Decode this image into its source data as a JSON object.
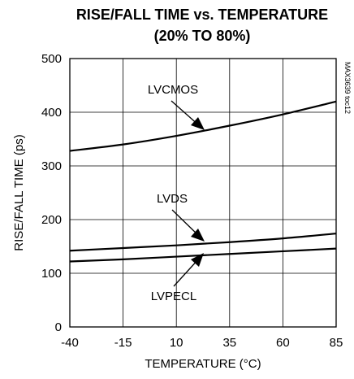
{
  "chart_data": {
    "type": "line",
    "title": "RISE/FALL TIME vs. TEMPERATURE",
    "subtitle": "(20% TO 80%)",
    "xlabel": "TEMPERATURE (°C)",
    "ylabel": "RISE/FALL TIME (ps)",
    "xlim": [
      -40,
      85
    ],
    "ylim": [
      0,
      500
    ],
    "xticks": [
      "-40",
      "-15",
      "10",
      "35",
      "60",
      "85"
    ],
    "yticks": [
      "0",
      "100",
      "200",
      "300",
      "400",
      "500"
    ],
    "grid": true,
    "watermark": "MAX3639 toc12",
    "series": [
      {
        "name": "LVCMOS",
        "x": [
          -40,
          -15,
          10,
          35,
          60,
          85
        ],
        "y": [
          328,
          340,
          356,
          375,
          396,
          420
        ]
      },
      {
        "name": "LVDS",
        "x": [
          -40,
          -15,
          10,
          35,
          60,
          85
        ],
        "y": [
          142,
          147,
          152,
          158,
          165,
          174
        ]
      },
      {
        "name": "LVPECL",
        "x": [
          -40,
          -15,
          10,
          35,
          60,
          85
        ],
        "y": [
          122,
          126,
          131,
          136,
          141,
          146
        ]
      }
    ]
  }
}
